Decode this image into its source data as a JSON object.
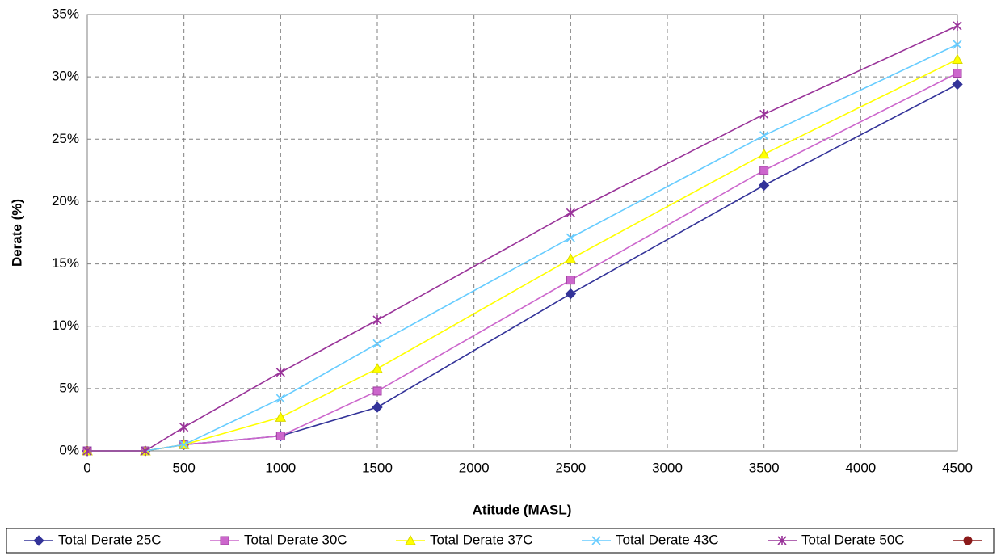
{
  "chart_data": {
    "type": "line",
    "ylabel": "Derate (%)",
    "xlabel": "Atitude (MASL)",
    "x": [
      0,
      300,
      500,
      1000,
      1500,
      2500,
      3500,
      4500
    ],
    "xlim": [
      0,
      4500
    ],
    "xticks": [
      0,
      500,
      1000,
      1500,
      2000,
      2500,
      3000,
      3500,
      4000,
      4500
    ],
    "ylim": [
      0,
      35
    ],
    "yticks": [
      {
        "value": 0,
        "label": "0%"
      },
      {
        "value": 5,
        "label": "5%"
      },
      {
        "value": 10,
        "label": "10%"
      },
      {
        "value": 15,
        "label": "15%"
      },
      {
        "value": 20,
        "label": "20%"
      },
      {
        "value": 25,
        "label": "25%"
      },
      {
        "value": 30,
        "label": "30%"
      },
      {
        "value": 35,
        "label": "35%"
      }
    ],
    "grid": true,
    "legend": "bottom",
    "series": [
      {
        "name": "Total Derate 25C",
        "color": "#333399",
        "marker": "diamond",
        "values": [
          0,
          0,
          0.5,
          1.2,
          3.5,
          12.6,
          21.3,
          29.4
        ]
      },
      {
        "name": "Total Derate 30C",
        "color": "#cc66cc",
        "marker": "square",
        "values": [
          0,
          0,
          0.5,
          1.2,
          4.8,
          13.7,
          22.5,
          30.3
        ]
      },
      {
        "name": "Total Derate 37C",
        "color": "#ffff00",
        "marker": "triangle",
        "values": [
          0,
          0,
          0.5,
          2.7,
          6.6,
          15.4,
          23.8,
          31.4
        ]
      },
      {
        "name": "Total Derate 43C",
        "color": "#66ccff",
        "marker": "x",
        "values": [
          0,
          0,
          0.5,
          4.2,
          8.6,
          17.1,
          25.3,
          32.6
        ]
      },
      {
        "name": "Total Derate 50C",
        "color": "#993399",
        "marker": "star",
        "values": [
          0,
          0,
          1.9,
          6.3,
          10.5,
          19.1,
          27.0,
          34.1
        ]
      },
      {
        "color": "#8b1a1a",
        "marker": "circle",
        "values": [
          null,
          null,
          null,
          null,
          null,
          null,
          null,
          null
        ]
      }
    ]
  }
}
